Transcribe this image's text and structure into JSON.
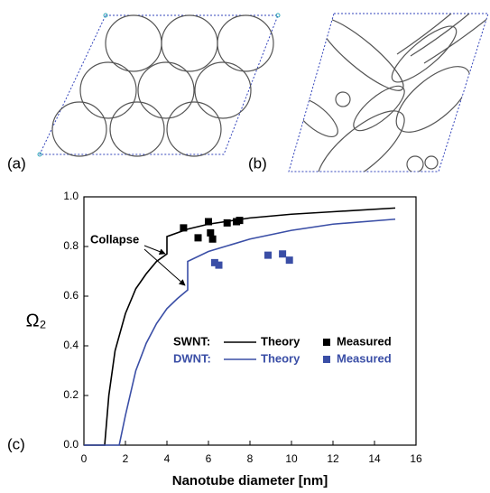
{
  "panel_labels": [
    "(a)",
    "(b)",
    "(c)"
  ],
  "chart_data": {
    "type": "line",
    "x_label": "Nanotube diameter [nm]",
    "y_label": "Ω₂",
    "xlim": [
      0,
      16
    ],
    "ylim": [
      0,
      1.0
    ],
    "xticks": [
      0,
      2,
      4,
      6,
      8,
      10,
      12,
      14,
      16
    ],
    "yticks": [
      {
        "value": 0,
        "label": "0.0"
      },
      {
        "value": 0.2,
        "label": "0.2"
      },
      {
        "value": 0.4,
        "label": "0.4"
      },
      {
        "value": 0.6,
        "label": "0.6"
      },
      {
        "value": 0.8,
        "label": "0.8"
      },
      {
        "value": 1.0,
        "label": "1.0"
      }
    ],
    "annotation": "Collapse",
    "series": [
      {
        "group": "SWNT:",
        "name": "Theory",
        "type": "line",
        "color": "#000000",
        "x": [
          0,
          1.0,
          1.2,
          1.5,
          2,
          2.5,
          3,
          3.5,
          4,
          4,
          5,
          6,
          8,
          10,
          12,
          15
        ],
        "values": [
          0,
          0,
          0.2,
          0.38,
          0.53,
          0.63,
          0.69,
          0.74,
          0.77,
          0.84,
          0.87,
          0.89,
          0.915,
          0.93,
          0.94,
          0.955
        ]
      },
      {
        "group": "SWNT:",
        "name": "Measured",
        "type": "scatter",
        "color": "#000000",
        "x": [
          4.8,
          5.5,
          6.0,
          6.1,
          6.2,
          6.9,
          7.35,
          7.5
        ],
        "values": [
          0.875,
          0.835,
          0.9,
          0.855,
          0.83,
          0.895,
          0.9,
          0.905
        ]
      },
      {
        "group": "DWNT:",
        "name": "Theory",
        "type": "line",
        "color": "#3a4ea6",
        "x": [
          0,
          1.7,
          2,
          2.5,
          3,
          3.5,
          4,
          4.5,
          5,
          5,
          6,
          8,
          10,
          12,
          15
        ],
        "values": [
          0,
          0,
          0.12,
          0.3,
          0.41,
          0.49,
          0.55,
          0.59,
          0.625,
          0.74,
          0.78,
          0.83,
          0.865,
          0.89,
          0.91
        ]
      },
      {
        "group": "DWNT:",
        "name": "Measured",
        "type": "scatter",
        "color": "#3a4ea6",
        "x": [
          6.3,
          6.5,
          8.87,
          9.57,
          9.9
        ],
        "values": [
          0.735,
          0.725,
          0.765,
          0.77,
          0.745
        ]
      }
    ]
  }
}
